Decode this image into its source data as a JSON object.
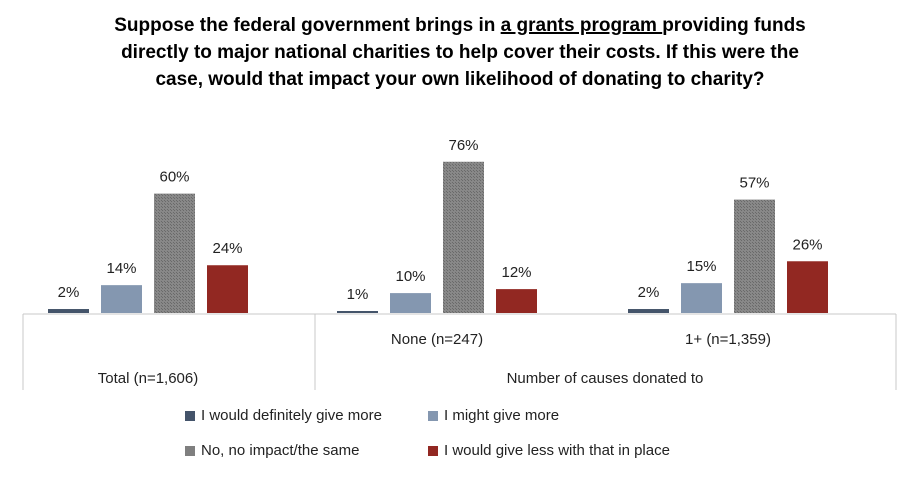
{
  "chart_data": {
    "type": "bar",
    "title_parts": [
      "Suppose the federal government brings in ",
      "a grants program ",
      "providing funds directly to major national charities to help cover their costs. If this were the case, would that impact your own likelihood of donating to charity?"
    ],
    "title": "Suppose the federal government brings in a grants program providing funds directly to major national charities to help cover their costs. If this were the case, would that impact your own likelihood of donating to charity?",
    "categories": [
      "Total (n=1,606)",
      "None (n=247)",
      "1+ (n=1,359)"
    ],
    "category_groups": [
      {
        "label": "",
        "members": [
          "Total (n=1,606)"
        ]
      },
      {
        "label": "Number of causes donated to",
        "members": [
          "None (n=247)",
          "1+ (n=1,359)"
        ]
      }
    ],
    "series": [
      {
        "name": "I would definitely give more",
        "color": "#44546a",
        "values": [
          2,
          1,
          2
        ]
      },
      {
        "name": "I might give more",
        "color": "#8497b0",
        "values": [
          14,
          10,
          15
        ]
      },
      {
        "name": "No, no impact/the same",
        "color": "#7f7f7f",
        "values": [
          60,
          76,
          57
        ]
      },
      {
        "name": "I would give less with that in place",
        "color": "#922822",
        "values": [
          24,
          12,
          26
        ]
      }
    ],
    "value_format": "percent",
    "ylim": [
      0,
      80
    ],
    "grid": false,
    "legend_position": "bottom"
  }
}
